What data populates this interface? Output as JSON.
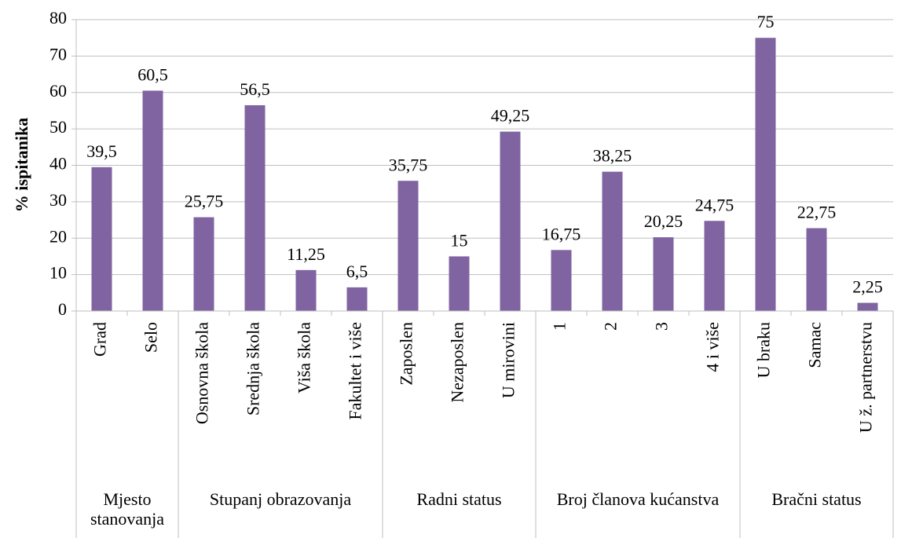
{
  "chart_data": {
    "type": "bar",
    "y_label": "% ispitanika",
    "color": "#8064a2",
    "grid": true,
    "ylim": [
      0,
      80
    ],
    "yticks": [
      0,
      10,
      20,
      30,
      40,
      50,
      60,
      70,
      80
    ],
    "groups": [
      {
        "name": "Mjesto stanovanja",
        "categories": [
          "Grad",
          "Selo"
        ],
        "values": [
          39.5,
          60.5
        ],
        "value_labels": [
          "39,5",
          "60,5"
        ]
      },
      {
        "name": "Stupanj obrazovanja",
        "categories": [
          "Osnovna škola",
          "Srednja škola",
          "Viša škola",
          "Fakultet i više"
        ],
        "values": [
          25.75,
          56.5,
          11.25,
          6.5
        ],
        "value_labels": [
          "25,75",
          "56,5",
          "11,25",
          "6,5"
        ]
      },
      {
        "name": "Radni status",
        "categories": [
          "Zaposlen",
          "Nezaposlen",
          "U mirovini"
        ],
        "values": [
          35.75,
          15,
          49.25
        ],
        "value_labels": [
          "35,75",
          "15",
          "49,25"
        ]
      },
      {
        "name": "Broj članova kućanstva",
        "categories": [
          "1",
          "2",
          "3",
          "4 i više"
        ],
        "values": [
          16.75,
          38.25,
          20.25,
          24.75
        ],
        "value_labels": [
          "16,75",
          "38,25",
          "20,25",
          "24,75"
        ]
      },
      {
        "name": "Bračni status",
        "categories": [
          "U braku",
          "Samac",
          "U ž. partnerstvu"
        ],
        "values": [
          75,
          22.75,
          2.25
        ],
        "value_labels": [
          "75",
          "22,75",
          "2,25"
        ]
      }
    ]
  }
}
